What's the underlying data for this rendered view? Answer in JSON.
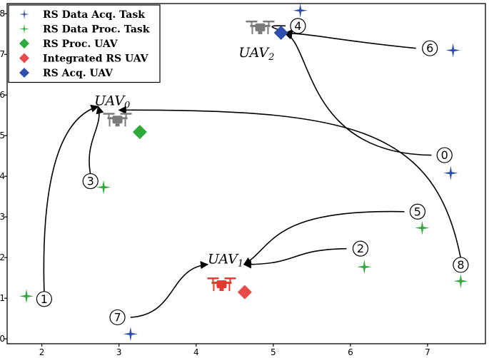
{
  "chart_data": {
    "type": "scatter",
    "xlim": [
      1.55,
      7.75
    ],
    "ylim": [
      -0.12,
      8.25
    ],
    "x_ticks": [
      "2",
      "3",
      "4",
      "5",
      "6",
      "7"
    ],
    "y_ticks": [
      "0",
      "1",
      "2",
      "3",
      "4",
      "5",
      "6",
      "7",
      "8"
    ],
    "grid": false,
    "legend_position": "top-left",
    "legend": [
      {
        "label": "RS Data Acq. Task",
        "marker": "star-small",
        "color": "#2f4fb0"
      },
      {
        "label": "RS Data Proc. Task",
        "marker": "star-small",
        "color": "#2eaa3a"
      },
      {
        "label": "RS Proc. UAV",
        "marker": "diamond",
        "color": "#2eaa3a"
      },
      {
        "label": "Integrated RS UAV",
        "marker": "diamond",
        "color": "#e84a4a"
      },
      {
        "label": "RS Acq. UAV",
        "marker": "diamond",
        "color": "#2f4fb0"
      }
    ],
    "acq_tasks": [
      {
        "x": 5.35,
        "y": 8.08
      },
      {
        "x": 7.33,
        "y": 7.1
      },
      {
        "x": 7.3,
        "y": 4.08
      },
      {
        "x": 3.15,
        "y": 0.12
      }
    ],
    "proc_tasks": [
      {
        "x": 1.8,
        "y": 1.05
      },
      {
        "x": 2.8,
        "y": 3.73
      },
      {
        "x": 6.18,
        "y": 1.77
      },
      {
        "x": 6.93,
        "y": 2.73
      },
      {
        "x": 7.43,
        "y": 1.42
      }
    ],
    "uavs": [
      {
        "id": "uav0",
        "name": "UAV",
        "sub": "0",
        "type": "RS Proc. UAV",
        "color": "#2eaa3a",
        "x": 3.27,
        "y": 5.09,
        "label_x": 2.68,
        "label_y": 5.75,
        "icon_color": "#7a7a7a",
        "icon_x": 2.98,
        "icon_y": 5.35
      },
      {
        "id": "uav1",
        "name": "UAV",
        "sub": "1",
        "type": "Integrated RS UAV",
        "color": "#e84a4a",
        "x": 4.63,
        "y": 1.15,
        "label_x": 4.15,
        "label_y": 1.85,
        "icon_color": "#e03b2c",
        "icon_x": 4.33,
        "icon_y": 1.3
      },
      {
        "id": "uav2",
        "name": "UAV",
        "sub": "2",
        "type": "RS Acq. UAV",
        "color": "#2f4fb0",
        "x": 5.1,
        "y": 7.53,
        "label_x": 4.55,
        "label_y": 6.93,
        "icon_color": "#7a7a7a",
        "icon_x": 4.83,
        "icon_y": 7.62
      }
    ],
    "tasks": [
      {
        "label": "0",
        "x": 7.22,
        "y": 4.52,
        "assigned_to": "uav0"
      },
      {
        "label": "1",
        "x": 2.03,
        "y": 0.98,
        "assigned_to": "uav0"
      },
      {
        "label": "2",
        "x": 6.13,
        "y": 2.22,
        "assigned_to": "uav1"
      },
      {
        "label": "3",
        "x": 2.63,
        "y": 3.88,
        "assigned_to": "uav0"
      },
      {
        "label": "4",
        "x": 5.32,
        "y": 7.7,
        "assigned_to": "uav2"
      },
      {
        "label": "5",
        "x": 6.87,
        "y": 3.13,
        "assigned_to": "uav1"
      },
      {
        "label": "6",
        "x": 7.03,
        "y": 7.15,
        "assigned_to": "uav2"
      },
      {
        "label": "7",
        "x": 2.98,
        "y": 0.53,
        "assigned_to": "uav1"
      },
      {
        "label": "8",
        "x": 7.43,
        "y": 1.82,
        "assigned_to": "uav0"
      }
    ],
    "arrows": [
      {
        "from": "1",
        "path": [
          [
            2.03,
            1.15
          ],
          [
            1.98,
            4.5
          ],
          [
            2.35,
            5.5
          ],
          [
            2.73,
            5.72
          ]
        ]
      },
      {
        "from": "3",
        "path": [
          [
            2.63,
            4.05
          ],
          [
            2.55,
            4.9
          ],
          [
            2.8,
            5.2
          ],
          [
            2.73,
            5.72
          ]
        ]
      },
      {
        "from": "8",
        "path": [
          [
            7.43,
            1.98
          ],
          [
            7.1,
            5.2
          ],
          [
            6.0,
            5.65
          ],
          [
            3.0,
            5.63
          ]
        ]
      },
      {
        "from": "0",
        "path": [
          [
            7.05,
            4.52
          ],
          [
            5.4,
            4.55
          ],
          [
            5.5,
            7.3
          ],
          [
            5.15,
            7.52
          ]
        ]
      },
      {
        "from": "4",
        "path": [
          [
            5.16,
            7.7
          ],
          [
            4.65,
            7.75
          ],
          [
            5.45,
            7.45
          ],
          [
            5.15,
            7.52
          ]
        ]
      },
      {
        "from": "6",
        "path": [
          [
            6.85,
            7.15
          ],
          [
            5.8,
            7.35
          ],
          [
            5.55,
            7.5
          ],
          [
            5.15,
            7.52
          ]
        ]
      },
      {
        "from": "5",
        "path": [
          [
            6.7,
            3.13
          ],
          [
            4.95,
            3.2
          ],
          [
            5.0,
            2.25
          ],
          [
            4.62,
            1.83
          ]
        ]
      },
      {
        "from": "2",
        "path": [
          [
            5.95,
            2.22
          ],
          [
            5.2,
            2.2
          ],
          [
            5.35,
            1.83
          ],
          [
            4.62,
            1.83
          ]
        ]
      },
      {
        "from": "7",
        "path": [
          [
            3.15,
            0.53
          ],
          [
            3.75,
            0.6
          ],
          [
            3.65,
            1.75
          ],
          [
            4.15,
            1.83
          ]
        ]
      }
    ]
  }
}
